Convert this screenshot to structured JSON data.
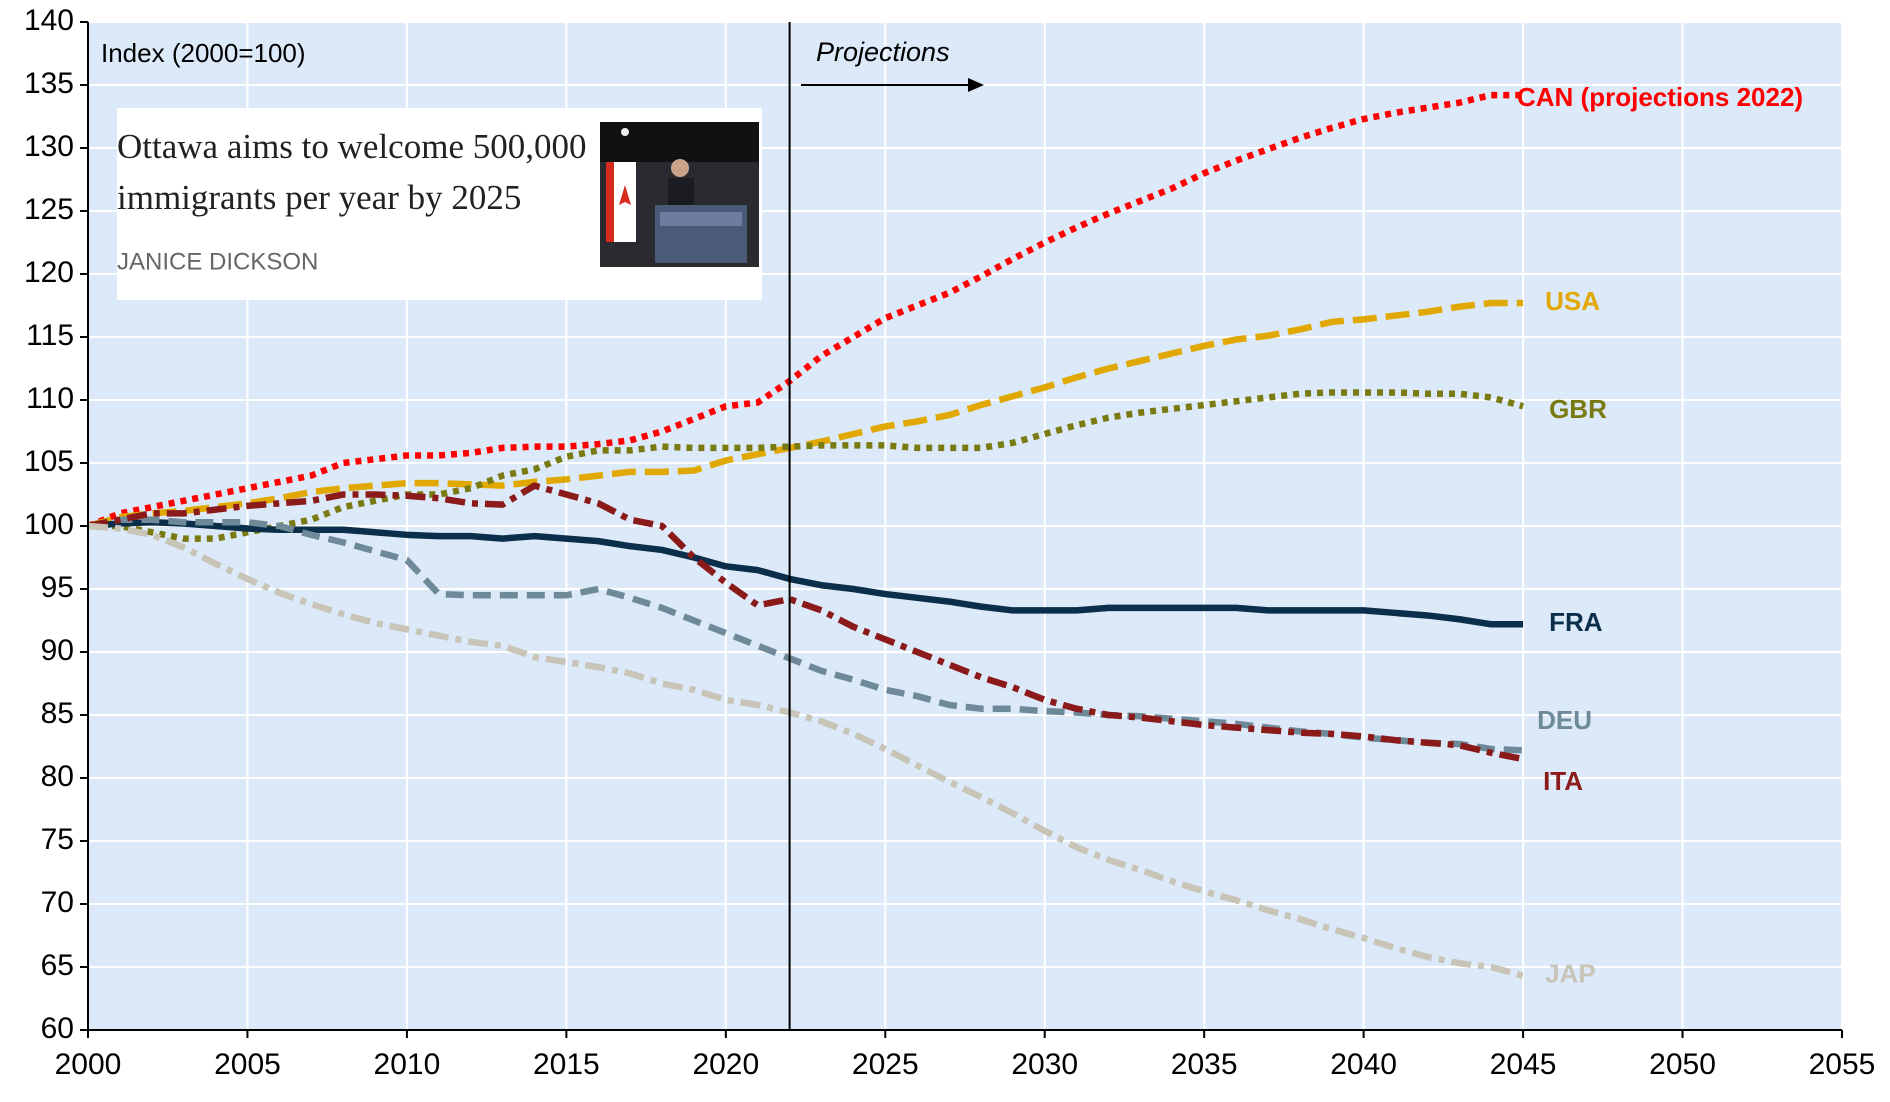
{
  "chart_data": {
    "type": "line",
    "y_label": "Index (2000=100)",
    "projection_label": "Projections",
    "projection_start": 2022,
    "inset_headline": [
      "Ottawa aims to welcome 500,000",
      "immigrants per year by 2025"
    ],
    "inset_author": "JANICE DICKSON",
    "xlim": [
      2000,
      2055
    ],
    "xticks": [
      2000,
      2005,
      2010,
      2015,
      2020,
      2025,
      2030,
      2035,
      2040,
      2045,
      2050,
      2055
    ],
    "ylim": [
      60,
      140
    ],
    "yticks": [
      60,
      65,
      70,
      75,
      80,
      85,
      90,
      95,
      100,
      105,
      110,
      115,
      120,
      125,
      130,
      135,
      140
    ],
    "grid": true,
    "x": [
      2000,
      2001,
      2002,
      2003,
      2004,
      2005,
      2006,
      2007,
      2008,
      2009,
      2010,
      2011,
      2012,
      2013,
      2014,
      2015,
      2016,
      2017,
      2018,
      2019,
      2020,
      2021,
      2022,
      2023,
      2024,
      2025,
      2026,
      2027,
      2028,
      2029,
      2030,
      2031,
      2032,
      2033,
      2034,
      2035,
      2036,
      2037,
      2038,
      2039,
      2040,
      2041,
      2042,
      2043,
      2044,
      2045
    ],
    "series": [
      {
        "name": "CAN (projections 2022)",
        "color": "#ff0000",
        "style": "dotted",
        "values": [
          100,
          101,
          101.5,
          102,
          102.5,
          103,
          103.5,
          104,
          105,
          105.3,
          105.6,
          105.6,
          105.8,
          106.2,
          106.3,
          106.3,
          106.5,
          106.8,
          107.5,
          108.5,
          109.5,
          109.8,
          111.5,
          113.5,
          115,
          116.5,
          117.5,
          118.5,
          119.8,
          121.2,
          122.5,
          123.7,
          124.8,
          125.8,
          126.8,
          128,
          129,
          129.9,
          130.8,
          131.6,
          132.3,
          132.8,
          133.2,
          133.6,
          134.2,
          134.2
        ]
      },
      {
        "name": "USA",
        "color": "#e0a800",
        "style": "longdash",
        "values": [
          100,
          100.7,
          101,
          101.2,
          101.5,
          101.8,
          102.2,
          102.7,
          103,
          103.2,
          103.4,
          103.4,
          103.3,
          103.2,
          103.5,
          103.7,
          104,
          104.3,
          104.3,
          104.4,
          105.2,
          105.7,
          106.2,
          106.7,
          107.3,
          107.9,
          108.3,
          108.8,
          109.6,
          110.3,
          111,
          111.8,
          112.5,
          113.1,
          113.7,
          114.3,
          114.8,
          115.1,
          115.6,
          116.2,
          116.4,
          116.7,
          117,
          117.4,
          117.7,
          117.7
        ]
      },
      {
        "name": "GBR",
        "color": "#7a7a12",
        "style": "dotted",
        "values": [
          100,
          100,
          99.5,
          99,
          99,
          99.5,
          100,
          100.5,
          101.5,
          102,
          102.5,
          102.5,
          103,
          104,
          104.5,
          105.5,
          106,
          106,
          106.3,
          106.2,
          106.2,
          106.2,
          106.3,
          106.4,
          106.4,
          106.4,
          106.2,
          106.2,
          106.2,
          106.6,
          107.3,
          108,
          108.6,
          109,
          109.3,
          109.6,
          109.9,
          110.2,
          110.5,
          110.6,
          110.6,
          110.6,
          110.5,
          110.5,
          110.2,
          109.5
        ]
      },
      {
        "name": "FRA",
        "color": "#0b2e4a",
        "style": "solid",
        "values": [
          100,
          100.2,
          100.3,
          100.2,
          100,
          99.8,
          99.7,
          99.7,
          99.7,
          99.5,
          99.3,
          99.2,
          99.2,
          99,
          99.2,
          99,
          98.8,
          98.4,
          98.1,
          97.5,
          96.8,
          96.5,
          95.8,
          95.3,
          95,
          94.6,
          94.3,
          94,
          93.6,
          93.3,
          93.3,
          93.3,
          93.5,
          93.5,
          93.5,
          93.5,
          93.5,
          93.3,
          93.3,
          93.3,
          93.3,
          93.1,
          92.9,
          92.6,
          92.2,
          92.2
        ]
      },
      {
        "name": "DEU",
        "color": "#6e8a99",
        "style": "dashed",
        "values": [
          100,
          100.5,
          100.5,
          100.3,
          100.3,
          100.3,
          100,
          99.3,
          98.7,
          98,
          97.3,
          94.6,
          94.5,
          94.5,
          94.5,
          94.5,
          95,
          94.3,
          93.5,
          92.5,
          91.5,
          90.5,
          89.5,
          88.5,
          87.8,
          87,
          86.5,
          85.8,
          85.5,
          85.5,
          85.3,
          85.2,
          85,
          84.9,
          84.7,
          84.5,
          84.3,
          84,
          83.7,
          83.5,
          83.2,
          83,
          82.8,
          82.7,
          82.3,
          82.2
        ]
      },
      {
        "name": "ITA",
        "color": "#8b1a1a",
        "style": "dashdot",
        "values": [
          100,
          100.5,
          101,
          101,
          101.3,
          101.6,
          101.8,
          102,
          102.5,
          102.5,
          102.4,
          102.2,
          101.8,
          101.7,
          103.2,
          102.5,
          101.8,
          100.5,
          100,
          97.5,
          95.5,
          93.7,
          94.2,
          93.3,
          92,
          91,
          90,
          89,
          88,
          87.2,
          86.2,
          85.5,
          85,
          84.8,
          84.5,
          84.2,
          84,
          83.8,
          83.6,
          83.5,
          83.3,
          83,
          82.8,
          82.6,
          82,
          81.5
        ]
      },
      {
        "name": "JAP",
        "color": "#c8c4b8",
        "style": "dashdot",
        "values": [
          100,
          99.8,
          99.3,
          98.3,
          97,
          95.8,
          94.7,
          93.8,
          93,
          92.3,
          91.8,
          91.3,
          90.8,
          90.5,
          89.6,
          89.2,
          88.8,
          88.3,
          87.5,
          87,
          86.2,
          85.8,
          85.2,
          84.5,
          83.5,
          82.3,
          81,
          79.7,
          78.5,
          77.2,
          75.8,
          74.5,
          73.5,
          72.7,
          71.8,
          71,
          70.3,
          69.5,
          68.8,
          68,
          67.3,
          66.5,
          65.8,
          65.3,
          65,
          64.3
        ]
      }
    ]
  }
}
